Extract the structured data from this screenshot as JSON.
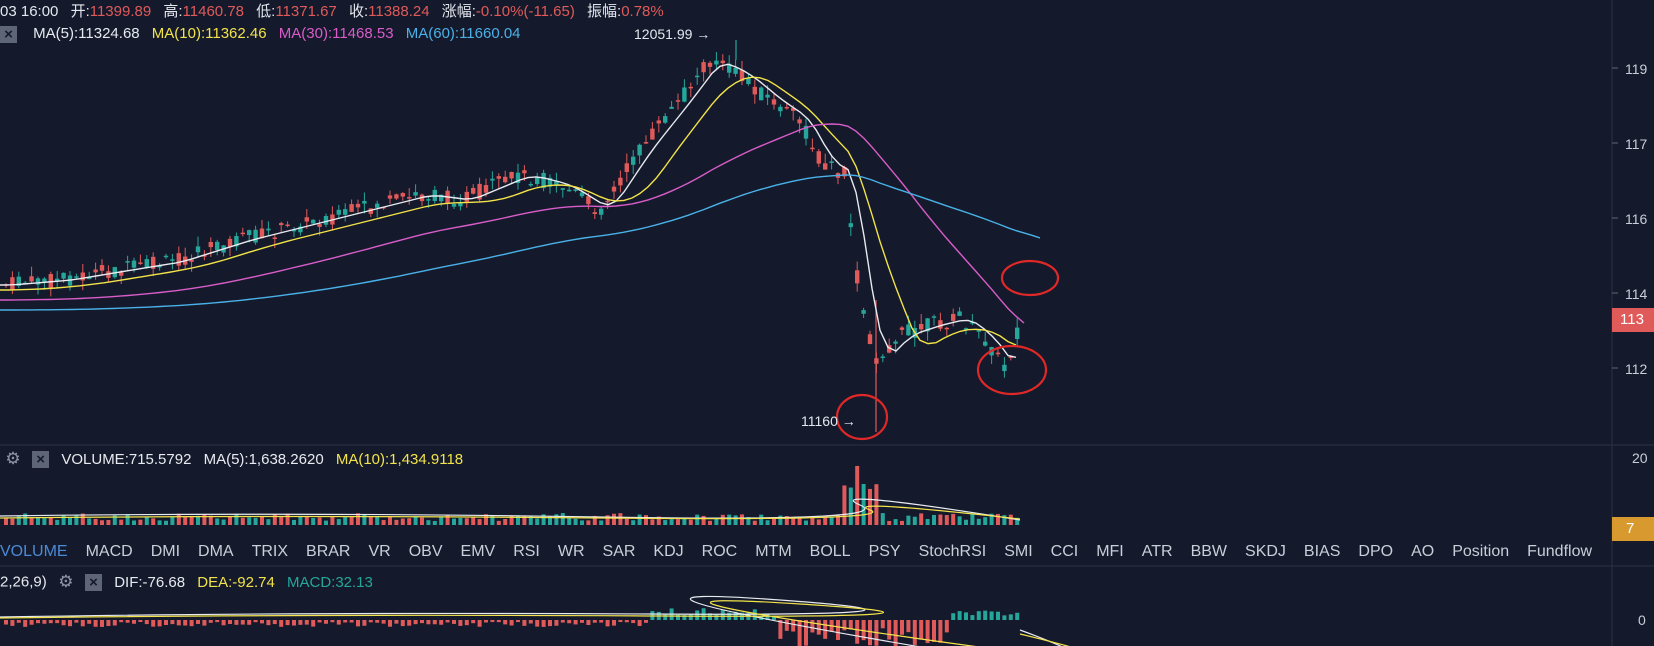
{
  "info": {
    "time": "03 16:00",
    "open_label": "开:",
    "open": "11399.89",
    "high_label": "高:",
    "high": "11460.78",
    "low_label": "低:",
    "low": "11371.67",
    "close_label": "收:",
    "close": "11388.24",
    "change_label": "涨幅:",
    "change": "-0.10%(-11.65)",
    "amp_label": "振幅:",
    "amp": "0.78%"
  },
  "ma": {
    "ma5": "MA(5):11324.68",
    "ma10": "MA(10):11362.46",
    "ma30": "MA(30):11468.53",
    "ma60": "MA(60):11660.04"
  },
  "price_axis": {
    "labels": [
      "119",
      "117",
      "116",
      "114",
      "112"
    ],
    "current": "113"
  },
  "annotations": {
    "high": "12051.99",
    "low": "11160"
  },
  "volume": {
    "volume": "VOLUME:715.5792",
    "ma5": "MA(5):1,638.2620",
    "ma10": "MA(10):1,434.9118",
    "axis_top": "20",
    "current": "7"
  },
  "tabs": [
    "VOLUME",
    "MACD",
    "DMI",
    "DMA",
    "TRIX",
    "BRAR",
    "VR",
    "OBV",
    "EMV",
    "RSI",
    "WR",
    "SAR",
    "KDJ",
    "ROC",
    "MTM",
    "BOLL",
    "PSY",
    "StochRSI",
    "SMI",
    "CCI",
    "MFI",
    "ATR",
    "BBW",
    "SKDJ",
    "BIAS",
    "DPO",
    "AO",
    "Position",
    "Fundflow"
  ],
  "macd": {
    "params": "2,26,9)",
    "dif": "DIF:-76.68",
    "dea": "DEA:-92.74",
    "macd": "MACD:32.13",
    "axis": "0"
  },
  "colors": {
    "up": "#26a69a",
    "down": "#e05a5a",
    "ma5": "#e8eaf0",
    "ma10": "#f2e34a",
    "ma30": "#d95cc9",
    "ma60": "#4ab1e8",
    "highlight": "#e02828"
  }
}
